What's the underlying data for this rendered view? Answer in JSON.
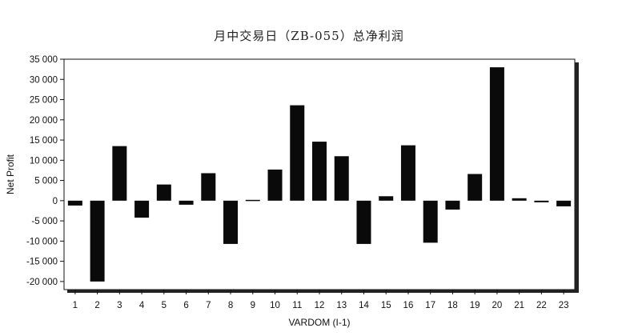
{
  "chart_data": {
    "type": "bar",
    "title": "月中交易日（ZB-055）总净利润",
    "xlabel": "VARDOM (I-1)",
    "ylabel": "Net Profit",
    "ylim": [
      -22000,
      35000
    ],
    "yticks": [
      35000,
      30000,
      25000,
      20000,
      15000,
      10000,
      5000,
      0,
      -5000,
      -10000,
      -15000,
      -20000
    ],
    "ytick_labels": [
      "35 000",
      "30 000",
      "25 000",
      "20 000",
      "15 000",
      "10 000",
      "5 000",
      "0",
      "-5 000",
      "-10 000",
      "-15 000",
      "-20 000"
    ],
    "categories": [
      "1",
      "2",
      "3",
      "4",
      "5",
      "6",
      "7",
      "8",
      "9",
      "10",
      "11",
      "12",
      "13",
      "14",
      "15",
      "16",
      "17",
      "18",
      "19",
      "20",
      "21",
      "22",
      "23"
    ],
    "values": [
      -1200,
      -20000,
      13500,
      -4200,
      4000,
      -1000,
      6800,
      -10700,
      200,
      7700,
      23600,
      14600,
      11000,
      -10700,
      1100,
      13700,
      -10400,
      -2200,
      6600,
      33000,
      600,
      -400,
      -1400
    ],
    "grid": false,
    "legend": "none"
  }
}
